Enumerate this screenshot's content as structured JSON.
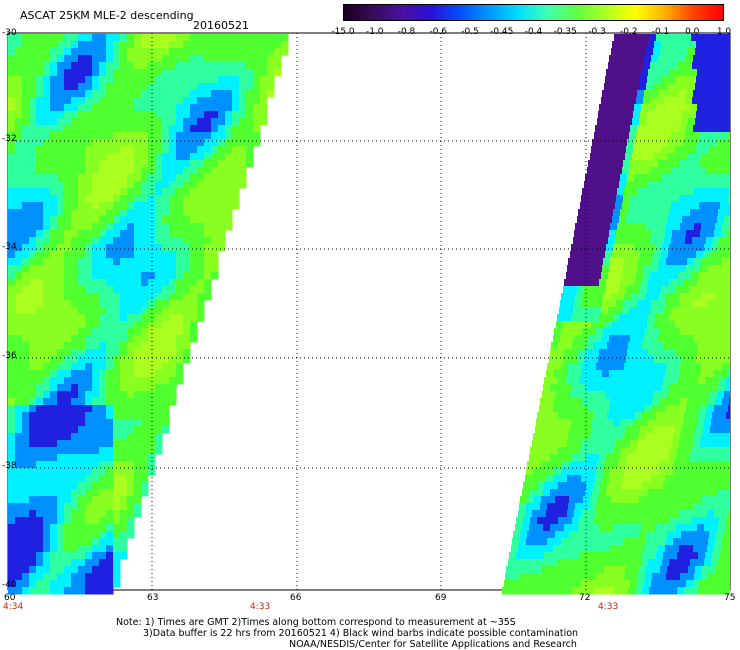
{
  "header": {
    "title": "ASCAT 25KM MLE-2 descending",
    "date": "20160521"
  },
  "colorbar": {
    "labels": [
      "-15.0",
      "-1.0",
      "-0.8",
      "-0.6",
      "-0.5",
      "-0.45",
      "-0.4",
      "-0.35",
      "-0.3",
      "-0.2",
      "-0.1",
      "0.0",
      "1.0"
    ],
    "colors": [
      "#1a0020",
      "#3a0a5a",
      "#4a10a0",
      "#2a10d8",
      "#0050ff",
      "#0098ff",
      "#00e0ff",
      "#40ffb0",
      "#60ff40",
      "#b0ff20",
      "#ffff00",
      "#ffb000",
      "#ff4000",
      "#ff0000"
    ]
  },
  "axes": {
    "y_ticks": [
      "-30",
      "-32",
      "-34",
      "-36",
      "-38",
      "-40"
    ],
    "x_ticks": [
      "60",
      "63",
      "66",
      "69",
      "72",
      "75"
    ],
    "times": [
      "4:34",
      "4:33",
      "4:33"
    ]
  },
  "notes": {
    "line1": "Note: 1) Times are GMT 2)Times along bottom correspond to measurement at ~35S",
    "line2": "3)Data buffer is 22 hrs from 20160521 4) Black wind barbs indicate possible contamination",
    "line3": "NOAA/NESDIS/Center for Satellite Applications and Research"
  }
}
